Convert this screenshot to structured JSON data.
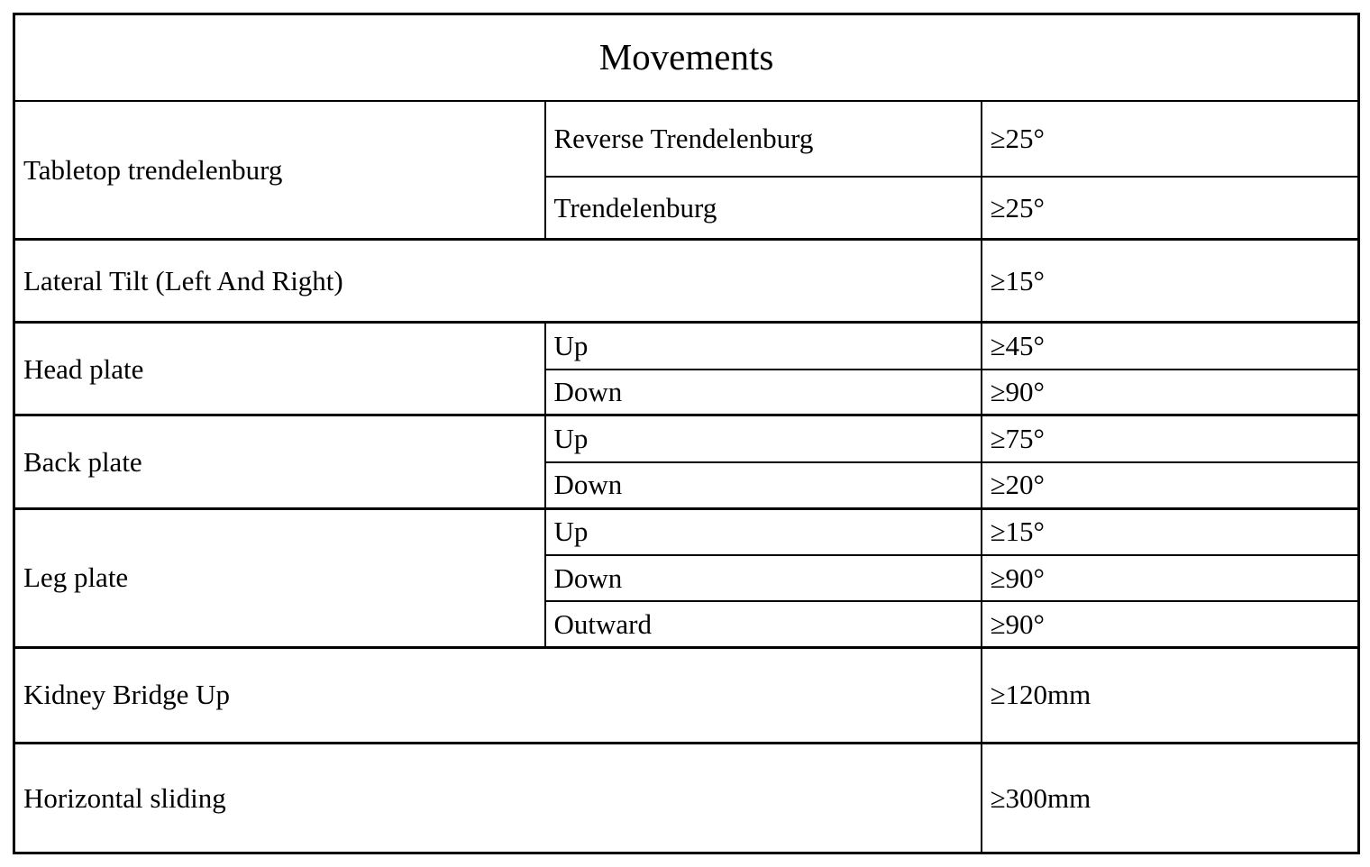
{
  "title": "Movements",
  "sections": {
    "tabletop": {
      "label": "Tabletop trendelenburg",
      "rows": [
        {
          "movement": "Reverse Trendelenburg",
          "value": "≥25°"
        },
        {
          "movement": "Trendelenburg",
          "value": "≥25°"
        }
      ]
    },
    "lateral": {
      "label": "Lateral Tilt (Left And Right)",
      "value": "≥15°"
    },
    "head": {
      "label": "Head plate",
      "rows": [
        {
          "movement": "Up",
          "value": "≥45°"
        },
        {
          "movement": "Down",
          "value": "≥90°"
        }
      ]
    },
    "back": {
      "label": "Back plate",
      "rows": [
        {
          "movement": "Up",
          "value": "≥75°"
        },
        {
          "movement": "Down",
          "value": "≥20°"
        }
      ]
    },
    "leg": {
      "label": "Leg plate",
      "rows": [
        {
          "movement": "Up",
          "value": "≥15°"
        },
        {
          "movement": "Down",
          "value": "≥90°"
        },
        {
          "movement": "Outward",
          "value": "≥90°"
        }
      ]
    },
    "kidney": {
      "label": "Kidney Bridge Up",
      "value": "≥120mm"
    },
    "horizontal": {
      "label": "Horizontal sliding",
      "value": "≥300mm"
    }
  }
}
